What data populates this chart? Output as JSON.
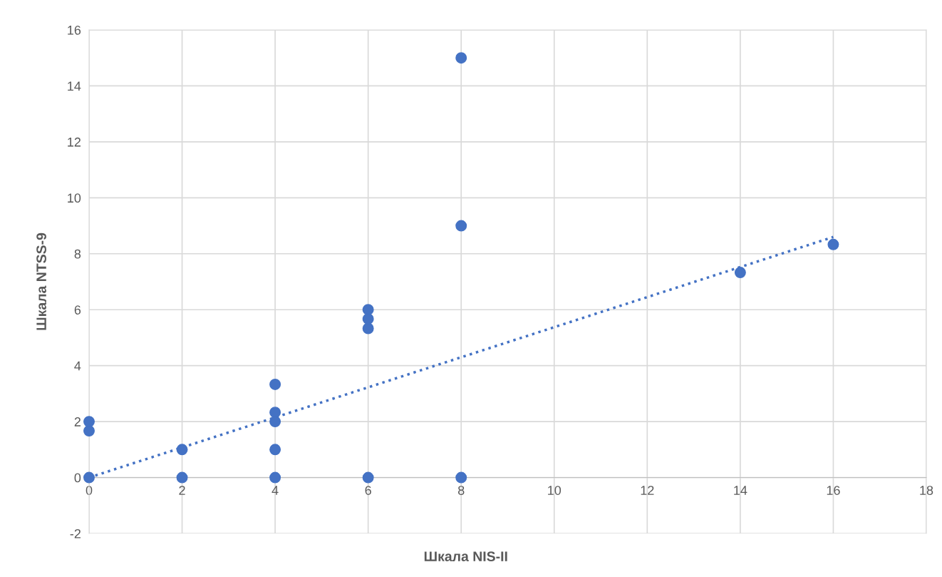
{
  "chart_data": {
    "type": "scatter",
    "xlabel": "Шкала NIS-II",
    "ylabel": "Шкала NTSS-9",
    "series": [
      {
        "color": "#4472c4",
        "marker": "circle",
        "x": [
          0,
          0,
          0,
          2,
          2,
          4,
          4,
          4,
          4,
          4,
          6,
          6,
          6,
          6,
          8,
          8,
          8,
          14,
          16
        ],
        "values": [
          0,
          1.67,
          2,
          1,
          0,
          3.33,
          2.33,
          2,
          1,
          0,
          6,
          5.67,
          5.33,
          0,
          15,
          9,
          0,
          7.33,
          8.33
        ]
      },
      {
        "type": "line",
        "color": "#4472c4",
        "line_style": "dotted",
        "marker": "none",
        "x": [
          0,
          16
        ],
        "values": [
          0,
          8.6
        ]
      }
    ],
    "xlim": [
      0,
      18
    ],
    "xticks": [
      0,
      2,
      4,
      6,
      8,
      10,
      12,
      14,
      16,
      18
    ],
    "ylim": [
      -2,
      16
    ],
    "yticks": [
      -2,
      0,
      2,
      4,
      6,
      8,
      10,
      12,
      14,
      16
    ],
    "grid": true,
    "legend": false
  }
}
